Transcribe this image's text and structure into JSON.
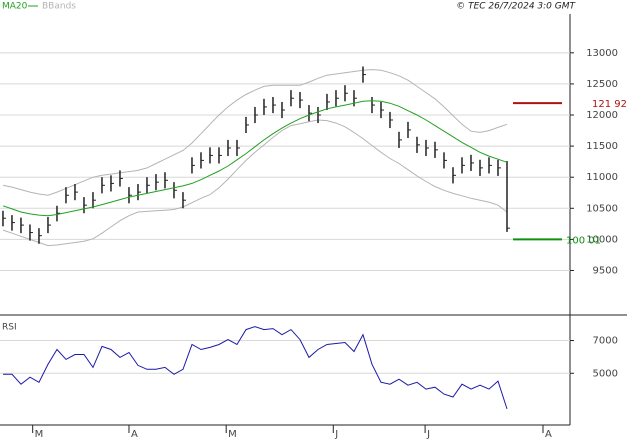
{
  "chart_data": [
    {
      "type": "ohlc",
      "source": "© TEC 26/7/2024 3:0 GMT",
      "ylim": [
        88,
        135.6
      ],
      "yticks": [
        {
          "value": 130,
          "label": "13000"
        },
        {
          "value": 125,
          "label": "12500"
        },
        {
          "value": 120,
          "label": "12000"
        },
        {
          "value": 115,
          "label": "11500"
        },
        {
          "value": 110,
          "label": "11000"
        },
        {
          "value": 105,
          "label": "10500"
        },
        {
          "value": 100,
          "label": "10000"
        },
        {
          "value": 95,
          "label": "9500"
        }
      ],
      "xlim": [
        -0.33,
        63
      ],
      "grid": true,
      "color": "#222222",
      "high": [
        104.6,
        103.9,
        103.5,
        102.4,
        101.8,
        103.6,
        105.4,
        108.4,
        108.9,
        106.8,
        107.6,
        110.0,
        110.3,
        111.1,
        108.4,
        108.9,
        110.0,
        110.5,
        110.8,
        109.2,
        107.6,
        113.2,
        114.0,
        114.8,
        114.8,
        116.0,
        116.0,
        119.7,
        121.3,
        122.6,
        122.9,
        122.1,
        124.0,
        123.7,
        121.6,
        121.3,
        123.4,
        124.0,
        124.8,
        124.0,
        127.8,
        122.9,
        122.1,
        120.5,
        117.3,
        118.9,
        116.5,
        116.0,
        115.7,
        114.0,
        111.6,
        113.2,
        113.6,
        112.8,
        113.2,
        112.8,
        112.6
      ],
      "low": [
        102.1,
        101.4,
        101.0,
        99.8,
        99.3,
        101.0,
        102.9,
        105.8,
        106.3,
        104.2,
        105.0,
        107.4,
        107.7,
        108.5,
        105.8,
        106.3,
        107.4,
        107.9,
        108.2,
        106.6,
        105.0,
        110.6,
        111.4,
        112.2,
        112.2,
        113.4,
        113.4,
        117.1,
        118.7,
        120.0,
        120.3,
        119.5,
        121.4,
        121.1,
        119.0,
        118.7,
        120.8,
        121.4,
        122.2,
        121.4,
        125.2,
        120.3,
        119.5,
        117.9,
        114.7,
        116.3,
        113.9,
        113.4,
        113.1,
        111.4,
        109.0,
        110.6,
        111.0,
        110.2,
        110.6,
        110.2,
        101.2
      ],
      "close": [
        103.4,
        102.7,
        102.3,
        101.1,
        100.6,
        102.3,
        104.2,
        107.1,
        107.6,
        105.5,
        106.3,
        108.7,
        109.0,
        109.8,
        107.1,
        107.6,
        108.7,
        109.2,
        109.5,
        107.9,
        106.3,
        111.9,
        112.7,
        113.5,
        113.5,
        114.7,
        114.7,
        118.4,
        120.0,
        121.3,
        121.6,
        120.8,
        122.7,
        122.4,
        120.3,
        120.0,
        122.1,
        122.7,
        123.5,
        122.7,
        126.5,
        121.6,
        120.8,
        119.2,
        116.0,
        117.6,
        115.2,
        114.7,
        114.4,
        112.7,
        110.3,
        111.9,
        112.3,
        111.5,
        111.9,
        111.5,
        101.8
      ],
      "series": [
        {
          "name": "MA20",
          "color": "#22a022",
          "values": [
            105.4,
            104.9,
            104.4,
            104.1,
            103.9,
            103.8,
            104.0,
            104.3,
            104.6,
            104.9,
            105.2,
            105.6,
            106.0,
            106.4,
            106.8,
            107.1,
            107.4,
            107.7,
            108.0,
            108.3,
            108.6,
            109.0,
            109.6,
            110.3,
            111.0,
            111.8,
            112.8,
            113.8,
            114.9,
            116.0,
            117.0,
            117.9,
            118.7,
            119.4,
            120.0,
            120.5,
            121.0,
            121.3,
            121.6,
            121.9,
            122.2,
            122.3,
            122.2,
            121.9,
            121.4,
            120.7,
            120.0,
            119.2,
            118.3,
            117.4,
            116.5,
            115.6,
            114.8,
            114.0,
            113.4,
            112.9,
            112.4
          ]
        }
      ],
      "bands": {
        "name": "BBands",
        "color": "#b4b4b4",
        "upper": [
          108.7,
          108.4,
          108.0,
          107.6,
          107.3,
          107.1,
          107.6,
          108.2,
          108.8,
          109.4,
          110.0,
          110.3,
          110.5,
          110.7,
          110.9,
          111.1,
          111.5,
          112.2,
          112.9,
          113.6,
          114.3,
          115.5,
          117.0,
          118.5,
          120.0,
          121.3,
          122.4,
          123.3,
          124.0,
          124.6,
          124.8,
          124.8,
          124.8,
          124.8,
          125.3,
          125.9,
          126.4,
          126.6,
          126.8,
          127.0,
          127.2,
          127.3,
          127.2,
          126.8,
          126.3,
          125.6,
          124.6,
          123.6,
          122.6,
          121.3,
          119.9,
          118.5,
          117.4,
          117.2,
          117.5,
          118.0,
          118.5
        ],
        "lower": [
          101.5,
          101.0,
          100.5,
          100.0,
          99.5,
          99.0,
          99.1,
          99.3,
          99.5,
          99.7,
          100.1,
          101.0,
          102.0,
          103.0,
          103.8,
          104.4,
          104.5,
          104.6,
          104.7,
          104.8,
          105.2,
          105.9,
          106.6,
          107.2,
          108.3,
          109.7,
          111.2,
          112.7,
          114.0,
          115.2,
          116.4,
          117.5,
          118.3,
          118.6,
          118.9,
          119.2,
          119.1,
          118.7,
          118.1,
          117.2,
          116.2,
          115.1,
          114.0,
          113.0,
          112.2,
          111.2,
          110.2,
          109.3,
          108.5,
          107.9,
          107.4,
          107.0,
          106.6,
          106.3,
          106.0,
          105.5,
          104.4
        ]
      },
      "price_marks": [
        {
          "value": 121.92,
          "label": "121 92",
          "color": "#b01010"
        },
        {
          "value": 100.01,
          "label": "100 01",
          "color": "#109010"
        }
      ]
    },
    {
      "type": "line",
      "title": "RSI",
      "ylim": [
        19,
        85
      ],
      "xlim": [
        -0.33,
        63
      ],
      "grid": true,
      "yticks": [
        {
          "value": 70,
          "label": "7000"
        },
        {
          "value": 50,
          "label": "5000"
        }
      ],
      "xticks": [
        {
          "value": 3.3,
          "label": "M"
        },
        {
          "value": 14,
          "label": "A"
        },
        {
          "value": 24.8,
          "label": "M"
        },
        {
          "value": 36.7,
          "label": "J"
        },
        {
          "value": 46.9,
          "label": "J"
        },
        {
          "value": 60,
          "label": "A"
        }
      ],
      "series": [
        {
          "name": "RSI",
          "color": "#1a1aa8",
          "values": [
            49.4,
            49.4,
            43.3,
            47.6,
            44.5,
            55.5,
            64.5,
            58.5,
            61.5,
            61.5,
            53.6,
            66.4,
            64.5,
            59.7,
            62.7,
            54.8,
            52.4,
            52.4,
            53.6,
            49.4,
            52.4,
            67.6,
            64.5,
            65.8,
            67.6,
            70.6,
            67.6,
            76.7,
            78.5,
            76.7,
            77.3,
            73.6,
            76.7,
            70.6,
            59.7,
            64.5,
            67.6,
            68.2,
            68.8,
            63.3,
            73.6,
            55.5,
            44.5,
            43.3,
            46.4,
            42.7,
            44.5,
            40.3,
            41.5,
            37.3,
            35.5,
            43.3,
            40.3,
            42.7,
            40.3,
            45.2,
            28.2
          ]
        }
      ]
    }
  ]
}
